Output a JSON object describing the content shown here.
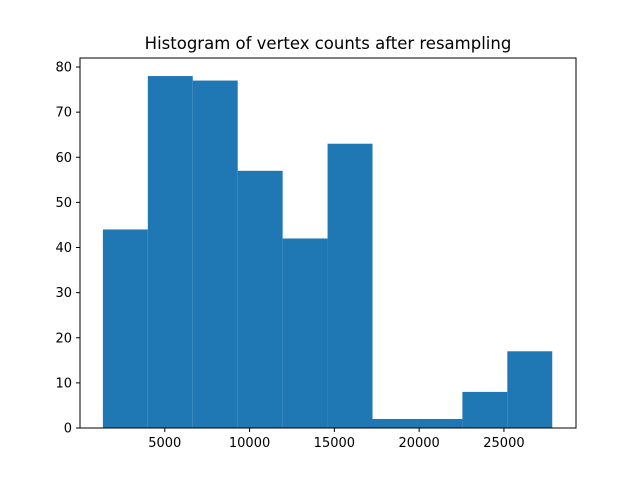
{
  "chart_data": {
    "type": "bar",
    "title": "Histogram of vertex counts after resampling",
    "xlabel": "",
    "ylabel": "",
    "bin_edges": [
      1350,
      4000,
      6650,
      9300,
      11950,
      14600,
      17250,
      19900,
      22550,
      25200,
      27850
    ],
    "values": [
      44,
      78,
      77,
      57,
      42,
      63,
      2,
      2,
      8,
      17
    ],
    "xlim": [
      0,
      29250
    ],
    "ylim": [
      0,
      82
    ],
    "x_ticks": [
      5000,
      10000,
      15000,
      20000,
      25000
    ],
    "y_ticks": [
      0,
      10,
      20,
      30,
      40,
      50,
      60,
      70,
      80
    ],
    "bar_color": "#1f77b4",
    "grid": false
  }
}
